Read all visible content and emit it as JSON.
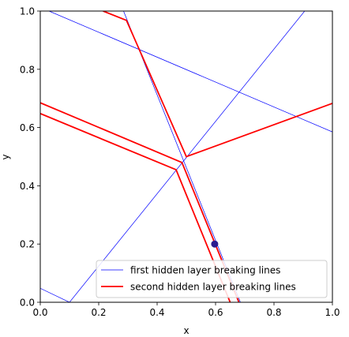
{
  "chart_data": {
    "type": "line",
    "xlabel": "x",
    "ylabel": "y",
    "xlim": [
      0,
      1
    ],
    "ylim": [
      0,
      1
    ],
    "xticks": [
      0.0,
      0.2,
      0.4,
      0.6,
      0.8,
      1.0
    ],
    "yticks": [
      0.0,
      0.2,
      0.4,
      0.6,
      0.8,
      1.0
    ],
    "xtick_labels": [
      "0.0",
      "0.2",
      "0.4",
      "0.6",
      "0.8",
      "1.0"
    ],
    "ytick_labels": [
      "0.0",
      "0.2",
      "0.4",
      "0.6",
      "0.8",
      "1.0"
    ],
    "grid": false,
    "legend_position": "lower-right",
    "series": [
      {
        "name": "first hidden layer breaking lines",
        "color": "#0000ff",
        "linewidth": "thin",
        "segments": [
          [
            [
              0.03,
              1.0
            ],
            [
              1.0,
              0.585
            ]
          ],
          [
            [
              0.285,
              1.0
            ],
            [
              0.685,
              0.0
            ]
          ],
          [
            [
              0.1,
              0.0
            ],
            [
              0.905,
              1.0
            ]
          ],
          [
            [
              0.0,
              0.048
            ],
            [
              0.1,
              0.0
            ]
          ]
        ]
      },
      {
        "name": "second hidden layer breaking lines",
        "color": "#ff0000",
        "linewidth": "thick",
        "segments": [
          [
            [
              0.215,
              1.0
            ],
            [
              0.295,
              0.968
            ],
            [
              0.5,
              0.5
            ],
            [
              1.0,
              0.683
            ]
          ],
          [
            [
              0.0,
              0.685
            ],
            [
              0.485,
              0.48
            ],
            [
              0.68,
              0.0
            ]
          ],
          [
            [
              0.0,
              0.648
            ],
            [
              0.465,
              0.455
            ],
            [
              0.65,
              0.0
            ]
          ]
        ]
      }
    ],
    "points": [
      {
        "x": 0.597,
        "y": 0.2,
        "color": "#2a1b8f"
      }
    ]
  }
}
